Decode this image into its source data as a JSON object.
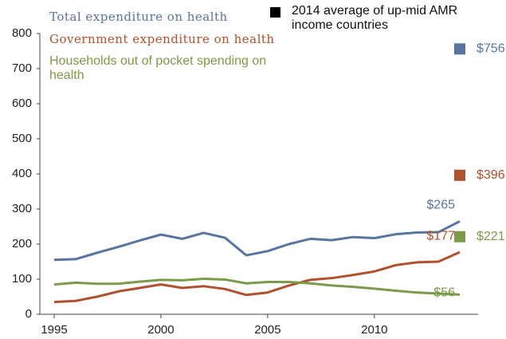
{
  "chart_data": {
    "type": "line",
    "x": [
      1995,
      1996,
      1997,
      1998,
      1999,
      2000,
      2001,
      2002,
      2003,
      2004,
      2005,
      2006,
      2007,
      2008,
      2009,
      2010,
      2011,
      2012,
      2013,
      2014
    ],
    "xlim": [
      1995,
      2014
    ],
    "xticks": [
      1995,
      2000,
      2005,
      2010
    ],
    "ylim": [
      0,
      800
    ],
    "yticks": [
      0,
      100,
      200,
      300,
      400,
      500,
      600,
      700,
      800
    ],
    "average_title": "2014 average of up-mid AMR income countries",
    "average_color": "#000000",
    "series": [
      {
        "name": "Total expenditure on health",
        "color": "#5a74a0",
        "values": [
          155,
          157,
          175,
          192,
          210,
          227,
          215,
          232,
          218,
          168,
          180,
          200,
          215,
          211,
          220,
          217,
          228,
          233,
          234,
          265
        ],
        "value_labels": [
          null,
          null,
          null,
          null,
          null,
          null,
          null,
          null,
          null,
          null,
          null,
          null,
          null,
          null,
          null,
          null,
          null,
          null,
          null,
          "$265"
        ],
        "average": 756,
        "average_label": "$756"
      },
      {
        "name": "Government expenditure on health",
        "color": "#b0502f",
        "values": [
          35,
          38,
          50,
          65,
          75,
          85,
          75,
          80,
          72,
          55,
          62,
          82,
          98,
          103,
          112,
          122,
          140,
          148,
          150,
          177
        ],
        "value_labels": [
          null,
          null,
          null,
          null,
          null,
          null,
          null,
          null,
          null,
          null,
          null,
          null,
          null,
          null,
          null,
          null,
          null,
          null,
          null,
          "$177"
        ],
        "average": 396,
        "average_label": "$396"
      },
      {
        "name": "Households out of pocket spending on health",
        "color": "#7d9a4a",
        "values": [
          85,
          90,
          87,
          87,
          93,
          98,
          97,
          101,
          99,
          88,
          92,
          92,
          88,
          82,
          78,
          73,
          67,
          62,
          59,
          56
        ],
        "value_labels": [
          null,
          null,
          null,
          null,
          null,
          null,
          null,
          null,
          null,
          null,
          null,
          null,
          null,
          null,
          null,
          null,
          null,
          null,
          null,
          "$56"
        ],
        "average": 221,
        "average_label": "$221"
      }
    ]
  }
}
